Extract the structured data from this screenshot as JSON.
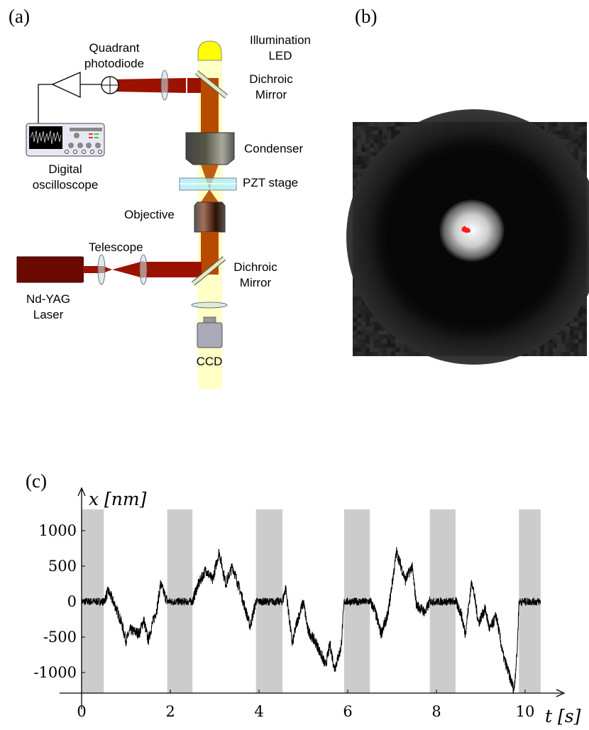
{
  "panels": {
    "a": "(a)",
    "b": "(b)",
    "c": "(c)"
  },
  "diagram": {
    "illumination": [
      "Illumination",
      "LED"
    ],
    "quadrant": [
      "Quadrant",
      "photodiode"
    ],
    "dichroic_top": [
      "Dichroic",
      "Mirror"
    ],
    "oscilloscope": [
      "Digital",
      "oscilloscope"
    ],
    "condenser": "Condenser",
    "pzt": "PZT stage",
    "objective": "Objective",
    "telescope": "Telescope",
    "dichroic_bottom": [
      "Dichroic",
      "Mirror"
    ],
    "laser": [
      "Nd-YAG",
      "Laser"
    ],
    "ccd": "CCD",
    "colors": {
      "laser": "#9b1200",
      "beam": "#b84a00",
      "led": "#ffff00",
      "illumination": "#ffffc0"
    }
  },
  "chart_data": {
    "type": "line",
    "xlabel": "t [s]",
    "ylabel": "x [nm]",
    "xticks": [
      0,
      2,
      4,
      6,
      8,
      10
    ],
    "yticks": [
      1000,
      500,
      0,
      -500,
      -1000
    ],
    "ytick_labels": [
      "1000",
      "500",
      "0",
      "-500",
      "-1000"
    ],
    "xlim": [
      0,
      10.35
    ],
    "ylim": [
      -1290,
      1300
    ],
    "shaded_intervals": [
      [
        0,
        0.5
      ],
      [
        1.93,
        2.5
      ],
      [
        3.93,
        4.53
      ],
      [
        5.92,
        6.5
      ],
      [
        7.85,
        8.43
      ],
      [
        9.86,
        10.35
      ]
    ],
    "shade_color": "#cccccc",
    "line_color": "#000000",
    "series": [
      {
        "points": [
          [
            0,
            0
          ],
          [
            0.5,
            0
          ],
          [
            0.6,
            150
          ],
          [
            0.75,
            -50
          ],
          [
            0.9,
            -300
          ],
          [
            1.0,
            -550
          ],
          [
            1.1,
            -400
          ],
          [
            1.3,
            -450
          ],
          [
            1.4,
            -250
          ],
          [
            1.5,
            -550
          ],
          [
            1.6,
            -300
          ],
          [
            1.7,
            -100
          ],
          [
            1.78,
            250
          ],
          [
            1.93,
            0
          ],
          [
            2.5,
            0
          ],
          [
            2.6,
            200
          ],
          [
            2.8,
            450
          ],
          [
            2.95,
            300
          ],
          [
            3.1,
            700
          ],
          [
            3.25,
            250
          ],
          [
            3.4,
            500
          ],
          [
            3.6,
            100
          ],
          [
            3.8,
            -350
          ],
          [
            3.93,
            0
          ],
          [
            4.53,
            0
          ],
          [
            4.6,
            200
          ],
          [
            4.75,
            -600
          ],
          [
            4.85,
            -300
          ],
          [
            5.0,
            0
          ],
          [
            5.1,
            -400
          ],
          [
            5.3,
            -600
          ],
          [
            5.5,
            -900
          ],
          [
            5.6,
            -600
          ],
          [
            5.7,
            -950
          ],
          [
            5.85,
            -650
          ],
          [
            5.92,
            0
          ],
          [
            6.5,
            0
          ],
          [
            6.6,
            -100
          ],
          [
            6.75,
            -450
          ],
          [
            6.9,
            -200
          ],
          [
            7.1,
            700
          ],
          [
            7.3,
            300
          ],
          [
            7.45,
            500
          ],
          [
            7.55,
            -50
          ],
          [
            7.75,
            -150
          ],
          [
            7.85,
            0
          ],
          [
            8.43,
            0
          ],
          [
            8.55,
            -150
          ],
          [
            8.65,
            -450
          ],
          [
            8.8,
            300
          ],
          [
            8.95,
            -300
          ],
          [
            9.1,
            -100
          ],
          [
            9.2,
            -400
          ],
          [
            9.35,
            -200
          ],
          [
            9.5,
            -750
          ],
          [
            9.6,
            -950
          ],
          [
            9.75,
            -1250
          ],
          [
            9.82,
            -700
          ],
          [
            9.86,
            0
          ],
          [
            10.35,
            0
          ]
        ]
      }
    ]
  }
}
